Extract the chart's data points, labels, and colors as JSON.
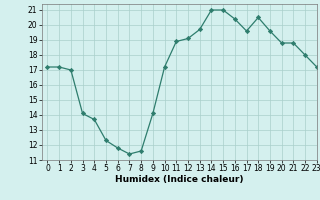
{
  "x": [
    0,
    1,
    2,
    3,
    4,
    5,
    6,
    7,
    8,
    9,
    10,
    11,
    12,
    13,
    14,
    15,
    16,
    17,
    18,
    19,
    20,
    21,
    22,
    23
  ],
  "y": [
    17.2,
    17.2,
    17.0,
    14.1,
    13.7,
    12.3,
    11.8,
    11.4,
    11.6,
    14.1,
    17.2,
    18.9,
    19.1,
    19.7,
    21.0,
    21.0,
    20.4,
    19.6,
    20.5,
    19.6,
    18.8,
    18.8,
    18.0,
    17.2
  ],
  "xlabel": "Humidex (Indice chaleur)",
  "xlim": [
    -0.5,
    23
  ],
  "ylim": [
    11,
    21.4
  ],
  "yticks": [
    11,
    12,
    13,
    14,
    15,
    16,
    17,
    18,
    19,
    20,
    21
  ],
  "xticks": [
    0,
    1,
    2,
    3,
    4,
    5,
    6,
    7,
    8,
    9,
    10,
    11,
    12,
    13,
    14,
    15,
    16,
    17,
    18,
    19,
    20,
    21,
    22,
    23
  ],
  "line_color": "#2e7d6d",
  "marker": "D",
  "marker_size": 2.2,
  "bg_color": "#d4f0ee",
  "grid_color": "#aacfcb",
  "axis_label_fontsize": 6.5,
  "tick_fontsize": 5.5
}
